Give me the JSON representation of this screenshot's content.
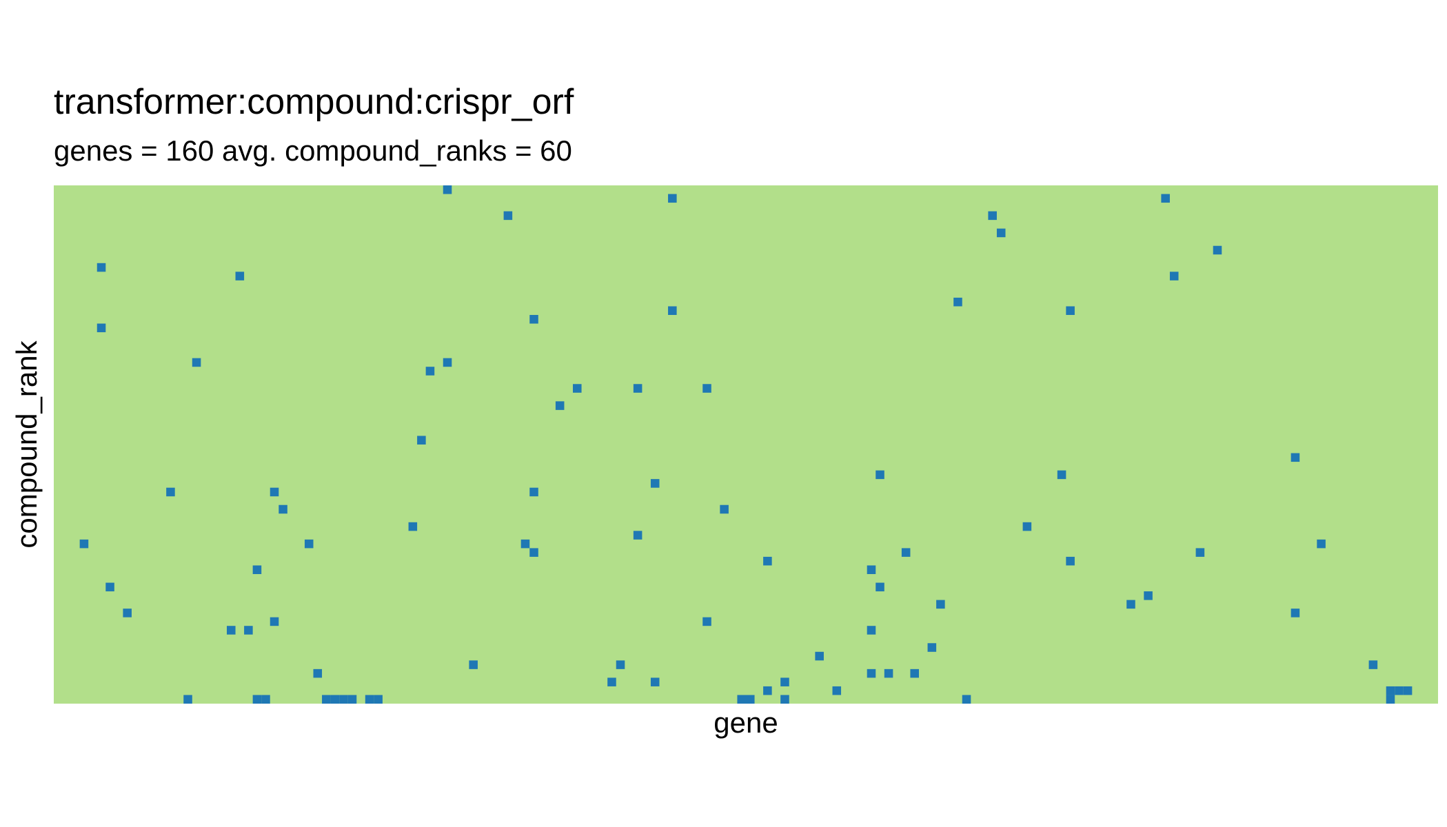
{
  "chart_data": {
    "type": "heatmap",
    "title": "transformer:compound:crispr_orf",
    "subtitle": "genes = 160 avg. compound_ranks = 60",
    "xlabel": "gene",
    "ylabel": "compound_rank",
    "n_genes": 160,
    "n_compound_ranks": 60,
    "background_color": "#b2df8a",
    "cell_color": "#1f78b4",
    "cells": [
      [
        45,
        0
      ],
      [
        71,
        1
      ],
      [
        128,
        1
      ],
      [
        52,
        3
      ],
      [
        108,
        3
      ],
      [
        109,
        5
      ],
      [
        134,
        7
      ],
      [
        5,
        9
      ],
      [
        21,
        10
      ],
      [
        129,
        10
      ],
      [
        104,
        13
      ],
      [
        71,
        14
      ],
      [
        117,
        14
      ],
      [
        55,
        15
      ],
      [
        5,
        16
      ],
      [
        16,
        20
      ],
      [
        43,
        21
      ],
      [
        45,
        20
      ],
      [
        67,
        23
      ],
      [
        60,
        23
      ],
      [
        75,
        23
      ],
      [
        58,
        25
      ],
      [
        42,
        29
      ],
      [
        143,
        31
      ],
      [
        95,
        33
      ],
      [
        116,
        33
      ],
      [
        13,
        35
      ],
      [
        25,
        35
      ],
      [
        55,
        35
      ],
      [
        69,
        34
      ],
      [
        26,
        37
      ],
      [
        77,
        37
      ],
      [
        41,
        39
      ],
      [
        112,
        39
      ],
      [
        3,
        41
      ],
      [
        29,
        41
      ],
      [
        54,
        41
      ],
      [
        67,
        40
      ],
      [
        55,
        42
      ],
      [
        98,
        42
      ],
      [
        132,
        42
      ],
      [
        82,
        43
      ],
      [
        117,
        43
      ],
      [
        94,
        44
      ],
      [
        23,
        44
      ],
      [
        146,
        41
      ],
      [
        6,
        46
      ],
      [
        95,
        46
      ],
      [
        126,
        47
      ],
      [
        102,
        48
      ],
      [
        124,
        48
      ],
      [
        8,
        49
      ],
      [
        143,
        49
      ],
      [
        20,
        51
      ],
      [
        22,
        51
      ],
      [
        75,
        50
      ],
      [
        25,
        50
      ],
      [
        94,
        51
      ],
      [
        101,
        53
      ],
      [
        88,
        54
      ],
      [
        48,
        55
      ],
      [
        65,
        55
      ],
      [
        152,
        55
      ],
      [
        30,
        56
      ],
      [
        94,
        56
      ],
      [
        96,
        56
      ],
      [
        99,
        56
      ],
      [
        64,
        57
      ],
      [
        69,
        57
      ],
      [
        84,
        57
      ],
      [
        82,
        58
      ],
      [
        90,
        58
      ],
      [
        15,
        59
      ],
      [
        23,
        59
      ],
      [
        24,
        59
      ],
      [
        31,
        59
      ],
      [
        32,
        59
      ],
      [
        33,
        59
      ],
      [
        34,
        59
      ],
      [
        36,
        59
      ],
      [
        37,
        59
      ],
      [
        79,
        59
      ],
      [
        80,
        59
      ],
      [
        84,
        59
      ],
      [
        105,
        59
      ],
      [
        154,
        59
      ],
      [
        154,
        58
      ],
      [
        155,
        58
      ],
      [
        156,
        58
      ]
    ]
  }
}
